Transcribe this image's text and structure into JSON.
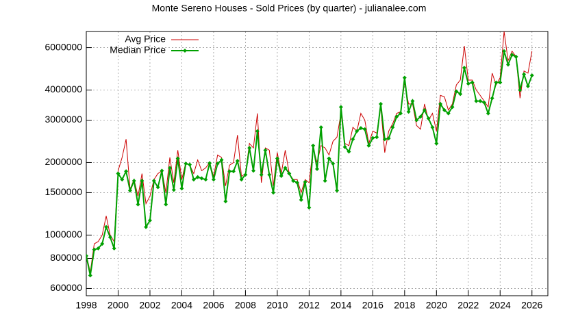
{
  "chart_data": {
    "type": "line",
    "title": "Monte Sereno Houses - Sold Prices (by quarter) - julianalee.com",
    "x": [
      1998,
      1998.25,
      1998.5,
      1998.75,
      1999,
      1999.25,
      1999.5,
      1999.75,
      2000,
      2000.25,
      2000.5,
      2000.75,
      2001,
      2001.25,
      2001.5,
      2001.75,
      2002,
      2002.25,
      2002.5,
      2002.75,
      2003,
      2003.25,
      2003.5,
      2003.75,
      2004,
      2004.25,
      2004.5,
      2004.75,
      2005,
      2005.25,
      2005.5,
      2005.75,
      2006,
      2006.25,
      2006.5,
      2006.75,
      2007,
      2007.25,
      2007.5,
      2007.75,
      2008,
      2008.25,
      2008.5,
      2008.75,
      2009,
      2009.25,
      2009.5,
      2009.75,
      2010,
      2010.25,
      2010.5,
      2010.75,
      2011,
      2011.25,
      2011.5,
      2011.75,
      2012,
      2012.25,
      2012.5,
      2012.75,
      2013,
      2013.25,
      2013.5,
      2013.75,
      2014,
      2014.25,
      2014.5,
      2014.75,
      2015,
      2015.25,
      2015.5,
      2015.75,
      2016,
      2016.25,
      2016.5,
      2016.75,
      2017,
      2017.25,
      2017.5,
      2017.75,
      2018,
      2018.25,
      2018.5,
      2018.75,
      2019,
      2019.25,
      2019.5,
      2019.75,
      2020,
      2020.25,
      2020.5,
      2020.75,
      2021,
      2021.25,
      2021.5,
      2021.75,
      2022,
      2022.25,
      2022.5,
      2022.75,
      2023,
      2023.25,
      2023.5,
      2023.75,
      2024,
      2024.25,
      2024.5,
      2024.75,
      2025,
      2025.25,
      2025.5,
      2025.75,
      2026
    ],
    "series": [
      {
        "name": "Avg Price",
        "color": "#cc0000",
        "marker": false,
        "values": [
          830000,
          700000,
          920000,
          940000,
          1000000,
          1200000,
          1000000,
          940000,
          1850000,
          2100000,
          2500000,
          1550000,
          1700000,
          1450000,
          1800000,
          1350000,
          1450000,
          1700000,
          1800000,
          1850000,
          1500000,
          2100000,
          1650000,
          2250000,
          1700000,
          2000000,
          1950000,
          1800000,
          2050000,
          1850000,
          1900000,
          2000000,
          1750000,
          2150000,
          2100000,
          1600000,
          1950000,
          2000000,
          2600000,
          1750000,
          1800000,
          2400000,
          2300000,
          3200000,
          1650000,
          2300000,
          2250000,
          1600000,
          2200000,
          1800000,
          2250000,
          1800000,
          1700000,
          1700000,
          1500000,
          1700000,
          1650000,
          2300000,
          2000000,
          2350000,
          2300000,
          2150000,
          2450000,
          2550000,
          3200000,
          2400000,
          2350000,
          2800000,
          2700000,
          3200000,
          3000000,
          2400000,
          2700000,
          2650000,
          3400000,
          2200000,
          2700000,
          2900000,
          3200000,
          3250000,
          4300000,
          3500000,
          3500000,
          2850000,
          2750000,
          3500000,
          3000000,
          3200000,
          2700000,
          3800000,
          3750000,
          3300000,
          3500000,
          4200000,
          4400000,
          6100000,
          4400000,
          4400000,
          4000000,
          3800000,
          3600000,
          3400000,
          4700000,
          4200000,
          4500000,
          7000000,
          5300000,
          5800000,
          5500000,
          3700000,
          4800000,
          4700000,
          5800000
        ]
      },
      {
        "name": "Median Price",
        "color": "#00a000",
        "marker": true,
        "values": [
          820000,
          680000,
          870000,
          880000,
          920000,
          1080000,
          980000,
          880000,
          1800000,
          1700000,
          1840000,
          1530000,
          1680000,
          1340000,
          1680000,
          1080000,
          1150000,
          1680000,
          1580000,
          1850000,
          1340000,
          1900000,
          1540000,
          2080000,
          1560000,
          1980000,
          1960000,
          1700000,
          1740000,
          1720000,
          1700000,
          1990000,
          1700000,
          1980000,
          2050000,
          1380000,
          1840000,
          1840000,
          2030000,
          1700000,
          1780000,
          2300000,
          1850000,
          2700000,
          1780000,
          2250000,
          1780000,
          1500000,
          2080000,
          1760000,
          1900000,
          1800000,
          1680000,
          1650000,
          1400000,
          1660000,
          1300000,
          2350000,
          1880000,
          2800000,
          1680000,
          2080000,
          1980000,
          1530000,
          3400000,
          2320000,
          2220000,
          2500000,
          2700000,
          2780000,
          2750000,
          2350000,
          2530000,
          2550000,
          3500000,
          2500000,
          2520000,
          2800000,
          3100000,
          3200000,
          4500000,
          3250000,
          3600000,
          3000000,
          3100000,
          3300000,
          3050000,
          2800000,
          2400000,
          3500000,
          3300000,
          3200000,
          3400000,
          3950000,
          3850000,
          4950000,
          4250000,
          4300000,
          3600000,
          3600000,
          3550000,
          3200000,
          3700000,
          4300000,
          4300000,
          5800000,
          5100000,
          5600000,
          5500000,
          4000000,
          4650000,
          4150000,
          4600000
        ]
      }
    ],
    "xlim": [
      1998,
      2027
    ],
    "xticks": [
      1998,
      2000,
      2002,
      2004,
      2006,
      2008,
      2010,
      2012,
      2014,
      2016,
      2018,
      2020,
      2022,
      2024,
      2026
    ],
    "ylim": [
      560000,
      7000000
    ],
    "yticks": [
      600000,
      800000,
      1000000,
      1500000,
      2000000,
      3000000,
      4000000,
      6000000
    ],
    "log_y": true,
    "grid": true,
    "legend": "top-left"
  }
}
